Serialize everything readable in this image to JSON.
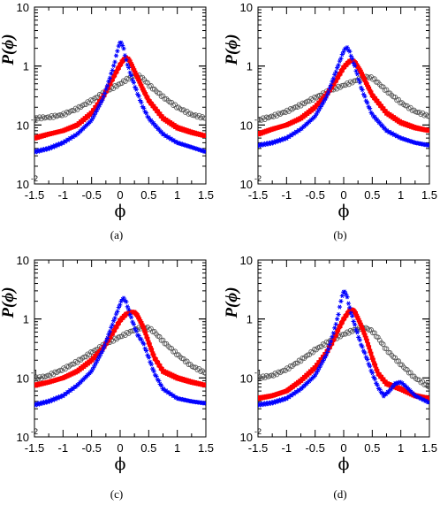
{
  "chart_data": [
    {
      "type": "line",
      "panel": "a",
      "caption": "(a)",
      "xlabel": "ϕ",
      "ylabel": "P(ϕ)",
      "xlim": [
        -1.5,
        1.5
      ],
      "ylim": [
        0.01,
        10
      ],
      "yscale": "log",
      "xticks": [
        -1.5,
        -1,
        -0.5,
        0,
        0.5,
        1,
        1.5
      ],
      "xtick_labels": [
        "-1.5",
        "-1",
        "-0.5",
        "0",
        "0.5",
        "1",
        "1.5"
      ],
      "yticks": [
        {
          "base": "10",
          "exp": "-2",
          "value": 0.01
        },
        {
          "base": "10",
          "exp": "-1",
          "value": 0.1
        },
        {
          "base": "1",
          "exp": "",
          "value": 1
        },
        {
          "base": "10",
          "exp": "",
          "value": 10
        }
      ],
      "series": [
        {
          "marker": "open-circle",
          "color": "#555555",
          "x": [
            -1.5,
            -1.25,
            -1.0,
            -0.75,
            -0.5,
            -0.25,
            0.0,
            0.1,
            0.2,
            0.25,
            0.3,
            0.4,
            0.5,
            0.75,
            1.0,
            1.25,
            1.5
          ],
          "y": [
            0.13,
            0.135,
            0.15,
            0.19,
            0.26,
            0.37,
            0.5,
            0.58,
            0.66,
            0.7,
            0.7,
            0.62,
            0.48,
            0.3,
            0.2,
            0.15,
            0.13
          ]
        },
        {
          "marker": "filled-square",
          "color": "#ff0000",
          "x": [
            -1.5,
            -1.25,
            -1.0,
            -0.75,
            -0.5,
            -0.3,
            -0.2,
            -0.1,
            0.0,
            0.05,
            0.1,
            0.15,
            0.2,
            0.3,
            0.4,
            0.5,
            0.75,
            1.0,
            1.25,
            1.5
          ],
          "y": [
            0.06,
            0.07,
            0.08,
            0.1,
            0.16,
            0.3,
            0.45,
            0.7,
            1.05,
            1.25,
            1.38,
            1.3,
            1.05,
            0.65,
            0.4,
            0.26,
            0.13,
            0.09,
            0.075,
            0.065
          ]
        },
        {
          "marker": "star",
          "color": "#0000ff",
          "x": [
            -1.5,
            -1.25,
            -1.0,
            -0.75,
            -0.5,
            -0.3,
            -0.2,
            -0.1,
            -0.05,
            0.0,
            0.05,
            0.1,
            0.2,
            0.3,
            0.4,
            0.5,
            0.75,
            1.0,
            1.25,
            1.5
          ],
          "y": [
            0.035,
            0.04,
            0.05,
            0.07,
            0.12,
            0.28,
            0.55,
            1.1,
            1.8,
            2.6,
            2.2,
            1.3,
            0.65,
            0.35,
            0.2,
            0.13,
            0.07,
            0.05,
            0.042,
            0.035
          ]
        }
      ]
    },
    {
      "type": "line",
      "panel": "b",
      "caption": "(b)",
      "xlabel": "ϕ",
      "ylabel": "P(ϕ)",
      "xlim": [
        -1.5,
        1.5
      ],
      "ylim": [
        0.01,
        10
      ],
      "yscale": "log",
      "xticks": [
        -1.5,
        -1,
        -0.5,
        0,
        0.5,
        1,
        1.5
      ],
      "xtick_labels": [
        "-1.5",
        "-1",
        "-0.5",
        "0",
        "0.5",
        "1",
        "1.5"
      ],
      "yticks": [
        {
          "base": "10",
          "exp": "-2",
          "value": 0.01
        },
        {
          "base": "10",
          "exp": "-1",
          "value": 0.1
        },
        {
          "base": "1",
          "exp": "",
          "value": 1
        },
        {
          "base": "10",
          "exp": "",
          "value": 10
        }
      ],
      "series": [
        {
          "marker": "open-circle",
          "color": "#555555",
          "x": [
            -1.5,
            -1.25,
            -1.0,
            -0.75,
            -0.5,
            -0.25,
            0.0,
            0.2,
            0.3,
            0.4,
            0.5,
            0.6,
            0.75,
            1.0,
            1.25,
            1.5
          ],
          "y": [
            0.12,
            0.14,
            0.17,
            0.22,
            0.29,
            0.38,
            0.47,
            0.56,
            0.62,
            0.66,
            0.63,
            0.52,
            0.38,
            0.24,
            0.17,
            0.14
          ]
        },
        {
          "marker": "filled-square",
          "color": "#ff0000",
          "x": [
            -1.5,
            -1.25,
            -1.0,
            -0.75,
            -0.5,
            -0.3,
            -0.2,
            -0.1,
            0.0,
            0.1,
            0.15,
            0.2,
            0.3,
            0.4,
            0.5,
            0.75,
            1.0,
            1.25,
            1.5
          ],
          "y": [
            0.07,
            0.085,
            0.1,
            0.13,
            0.2,
            0.33,
            0.45,
            0.65,
            0.95,
            1.2,
            1.25,
            1.15,
            0.8,
            0.5,
            0.32,
            0.16,
            0.11,
            0.09,
            0.08
          ]
        },
        {
          "marker": "star",
          "color": "#0000ff",
          "x": [
            -1.5,
            -1.25,
            -1.0,
            -0.75,
            -0.5,
            -0.3,
            -0.2,
            -0.1,
            0.0,
            0.05,
            0.1,
            0.2,
            0.3,
            0.4,
            0.5,
            0.75,
            1.0,
            1.25,
            1.5
          ],
          "y": [
            0.045,
            0.05,
            0.06,
            0.085,
            0.14,
            0.3,
            0.55,
            1.0,
            1.8,
            2.1,
            1.8,
            0.95,
            0.45,
            0.25,
            0.15,
            0.08,
            0.06,
            0.05,
            0.045
          ]
        }
      ]
    },
    {
      "type": "line",
      "panel": "c",
      "caption": "(c)",
      "xlabel": "ϕ",
      "ylabel": "P(ϕ)",
      "xlim": [
        -1.5,
        1.5
      ],
      "ylim": [
        0.01,
        10
      ],
      "yscale": "log",
      "xticks": [
        -1.5,
        -1,
        -0.5,
        0,
        0.5,
        1,
        1.5
      ],
      "xtick_labels": [
        "-1.5",
        "-1",
        "-0.5",
        "0",
        "0.5",
        "1",
        "1.5"
      ],
      "yticks": [
        {
          "base": "10",
          "exp": "-2",
          "value": 0.01
        },
        {
          "base": "10",
          "exp": "-1",
          "value": 0.1
        },
        {
          "base": "1",
          "exp": "",
          "value": 1
        },
        {
          "base": "10",
          "exp": "",
          "value": 10
        }
      ],
      "series": [
        {
          "marker": "open-circle",
          "color": "#555555",
          "x": [
            -1.5,
            -1.25,
            -1.0,
            -0.75,
            -0.5,
            -0.25,
            0.0,
            0.2,
            0.3,
            0.4,
            0.5,
            0.6,
            0.75,
            1.0,
            1.25,
            1.5
          ],
          "y": [
            0.095,
            0.11,
            0.14,
            0.19,
            0.27,
            0.38,
            0.5,
            0.62,
            0.68,
            0.72,
            0.7,
            0.6,
            0.42,
            0.25,
            0.16,
            0.12
          ]
        },
        {
          "marker": "filled-square",
          "color": "#ff0000",
          "x": [
            -1.5,
            -1.25,
            -1.0,
            -0.75,
            -0.5,
            -0.3,
            -0.2,
            -0.1,
            0.0,
            0.1,
            0.2,
            0.25,
            0.3,
            0.4,
            0.5,
            0.6,
            0.75,
            1.0,
            1.25,
            1.5
          ],
          "y": [
            0.075,
            0.085,
            0.1,
            0.13,
            0.2,
            0.32,
            0.45,
            0.65,
            0.95,
            1.2,
            1.32,
            1.3,
            1.15,
            0.75,
            0.4,
            0.22,
            0.13,
            0.1,
            0.085,
            0.075
          ]
        },
        {
          "marker": "star",
          "color": "#0000ff",
          "x": [
            -1.5,
            -1.25,
            -1.0,
            -0.75,
            -0.5,
            -0.3,
            -0.2,
            -0.1,
            0.0,
            0.05,
            0.1,
            0.2,
            0.3,
            0.4,
            0.5,
            0.6,
            0.75,
            1.0,
            1.25,
            1.5
          ],
          "y": [
            0.035,
            0.04,
            0.05,
            0.075,
            0.13,
            0.3,
            0.55,
            1.0,
            1.8,
            2.3,
            2.0,
            1.0,
            0.55,
            0.4,
            0.22,
            0.12,
            0.065,
            0.045,
            0.04,
            0.037
          ]
        }
      ]
    },
    {
      "type": "line",
      "panel": "d",
      "caption": "(d)",
      "xlabel": "ϕ",
      "ylabel": "P(ϕ)",
      "xlim": [
        -1.5,
        1.5
      ],
      "ylim": [
        0.01,
        10
      ],
      "yscale": "log",
      "xticks": [
        -1.5,
        -1,
        -0.5,
        0,
        0.5,
        1,
        1.5
      ],
      "xtick_labels": [
        "-1.5",
        "-1",
        "-0.5",
        "0",
        "0.5",
        "1",
        "1.5"
      ],
      "yticks": [
        {
          "base": "10",
          "exp": "-2",
          "value": 0.01
        },
        {
          "base": "10",
          "exp": "-1",
          "value": 0.1
        },
        {
          "base": "1",
          "exp": "",
          "value": 1
        },
        {
          "base": "10",
          "exp": "",
          "value": 10
        }
      ],
      "series": [
        {
          "marker": "open-circle",
          "color": "#555555",
          "x": [
            -1.5,
            -1.25,
            -1.0,
            -0.75,
            -0.5,
            -0.25,
            0.0,
            0.2,
            0.3,
            0.4,
            0.5,
            0.6,
            0.75,
            1.0,
            1.25,
            1.5
          ],
          "y": [
            0.1,
            0.11,
            0.14,
            0.2,
            0.3,
            0.42,
            0.55,
            0.66,
            0.7,
            0.7,
            0.62,
            0.48,
            0.3,
            0.17,
            0.1,
            0.07
          ]
        },
        {
          "marker": "filled-square",
          "color": "#ff0000",
          "x": [
            -1.5,
            -1.25,
            -1.0,
            -0.75,
            -0.5,
            -0.3,
            -0.2,
            -0.1,
            0.0,
            0.1,
            0.15,
            0.2,
            0.3,
            0.4,
            0.5,
            0.6,
            0.75,
            1.0,
            1.25,
            1.5
          ],
          "y": [
            0.045,
            0.05,
            0.06,
            0.09,
            0.15,
            0.27,
            0.4,
            0.65,
            1.0,
            1.38,
            1.45,
            1.3,
            0.8,
            0.45,
            0.22,
            0.12,
            0.08,
            0.065,
            0.05,
            0.045
          ]
        },
        {
          "marker": "star",
          "color": "#0000ff",
          "x": [
            -1.5,
            -1.25,
            -1.0,
            -0.75,
            -0.5,
            -0.3,
            -0.2,
            -0.1,
            -0.05,
            0.0,
            0.05,
            0.1,
            0.2,
            0.3,
            0.4,
            0.5,
            0.6,
            0.7,
            0.8,
            0.9,
            1.0,
            1.1,
            1.25,
            1.5
          ],
          "y": [
            0.035,
            0.038,
            0.045,
            0.065,
            0.11,
            0.25,
            0.5,
            1.1,
            2.0,
            3.0,
            2.6,
            1.6,
            0.75,
            0.38,
            0.22,
            0.12,
            0.07,
            0.05,
            0.06,
            0.08,
            0.085,
            0.07,
            0.05,
            0.038
          ]
        }
      ]
    }
  ]
}
